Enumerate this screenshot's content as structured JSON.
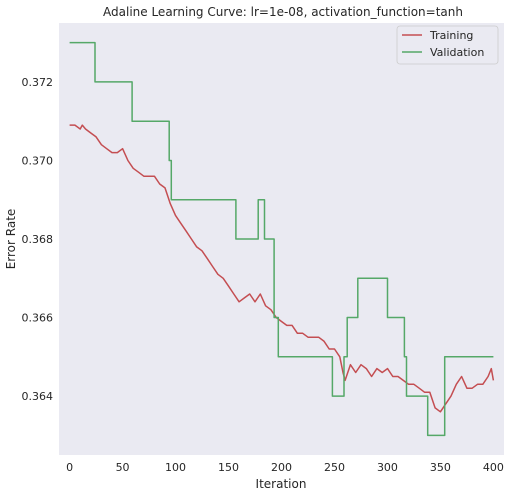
{
  "chart_data": {
    "type": "line",
    "title": "Adaline Learning Curve: lr=1e-08, activation_function=tanh",
    "xlabel": "Iteration",
    "ylabel": "Error Rate",
    "xlim": [
      -10,
      410
    ],
    "ylim": [
      0.3625,
      0.3735
    ],
    "grid": false,
    "legend_position": "top-right",
    "background": "#eaeaf2",
    "x_ticks": [
      0,
      50,
      100,
      150,
      200,
      250,
      300,
      350,
      400
    ],
    "y_ticks": [
      0.364,
      0.366,
      0.368,
      0.37,
      0.372
    ],
    "y_tick_labels": [
      "0.364",
      "0.366",
      "0.368",
      "0.370",
      "0.372"
    ],
    "series": [
      {
        "name": "Training",
        "color": "#c44e52",
        "points": [
          [
            0,
            0.3709
          ],
          [
            5,
            0.3709
          ],
          [
            10,
            0.3708
          ],
          [
            12,
            0.3709
          ],
          [
            15,
            0.3708
          ],
          [
            20,
            0.3707
          ],
          [
            25,
            0.3706
          ],
          [
            30,
            0.3704
          ],
          [
            35,
            0.3703
          ],
          [
            40,
            0.3702
          ],
          [
            45,
            0.3702
          ],
          [
            50,
            0.3703
          ],
          [
            55,
            0.37
          ],
          [
            60,
            0.3698
          ],
          [
            65,
            0.3697
          ],
          [
            70,
            0.3696
          ],
          [
            75,
            0.3696
          ],
          [
            80,
            0.3696
          ],
          [
            85,
            0.3694
          ],
          [
            90,
            0.3693
          ],
          [
            95,
            0.3689
          ],
          [
            100,
            0.3686
          ],
          [
            105,
            0.3684
          ],
          [
            110,
            0.3682
          ],
          [
            115,
            0.368
          ],
          [
            120,
            0.3678
          ],
          [
            125,
            0.3677
          ],
          [
            130,
            0.3675
          ],
          [
            135,
            0.3673
          ],
          [
            140,
            0.3671
          ],
          [
            145,
            0.367
          ],
          [
            150,
            0.3668
          ],
          [
            155,
            0.3666
          ],
          [
            160,
            0.3664
          ],
          [
            165,
            0.3665
          ],
          [
            170,
            0.3666
          ],
          [
            175,
            0.3664
          ],
          [
            180,
            0.3666
          ],
          [
            185,
            0.3663
          ],
          [
            190,
            0.3662
          ],
          [
            195,
            0.366
          ],
          [
            200,
            0.3659
          ],
          [
            205,
            0.3658
          ],
          [
            210,
            0.3658
          ],
          [
            215,
            0.3656
          ],
          [
            220,
            0.3656
          ],
          [
            225,
            0.3655
          ],
          [
            230,
            0.3655
          ],
          [
            235,
            0.3655
          ],
          [
            240,
            0.3654
          ],
          [
            245,
            0.3652
          ],
          [
            250,
            0.3652
          ],
          [
            255,
            0.365
          ],
          [
            258,
            0.3646
          ],
          [
            260,
            0.3644
          ],
          [
            265,
            0.3648
          ],
          [
            270,
            0.3646
          ],
          [
            275,
            0.3648
          ],
          [
            280,
            0.3647
          ],
          [
            285,
            0.3645
          ],
          [
            290,
            0.3647
          ],
          [
            295,
            0.3646
          ],
          [
            300,
            0.3647
          ],
          [
            305,
            0.3645
          ],
          [
            310,
            0.3645
          ],
          [
            315,
            0.3644
          ],
          [
            320,
            0.3643
          ],
          [
            325,
            0.3643
          ],
          [
            330,
            0.3642
          ],
          [
            335,
            0.3641
          ],
          [
            340,
            0.3641
          ],
          [
            345,
            0.3637
          ],
          [
            350,
            0.3636
          ],
          [
            355,
            0.3638
          ],
          [
            360,
            0.364
          ],
          [
            365,
            0.3643
          ],
          [
            370,
            0.3645
          ],
          [
            375,
            0.3642
          ],
          [
            380,
            0.3642
          ],
          [
            385,
            0.3643
          ],
          [
            390,
            0.3643
          ],
          [
            395,
            0.3645
          ],
          [
            398,
            0.3647
          ],
          [
            400,
            0.3644
          ]
        ]
      },
      {
        "name": "Validation",
        "color": "#55a868",
        "steps": [
          [
            0,
            0.373
          ],
          [
            24,
            0.373
          ],
          [
            24,
            0.372
          ],
          [
            59,
            0.372
          ],
          [
            59,
            0.371
          ],
          [
            94,
            0.371
          ],
          [
            94,
            0.37
          ],
          [
            96,
            0.37
          ],
          [
            96,
            0.369
          ],
          [
            157,
            0.369
          ],
          [
            157,
            0.368
          ],
          [
            178,
            0.368
          ],
          [
            178,
            0.369
          ],
          [
            184,
            0.369
          ],
          [
            184,
            0.368
          ],
          [
            193,
            0.368
          ],
          [
            193,
            0.366
          ],
          [
            197,
            0.366
          ],
          [
            197,
            0.365
          ],
          [
            248,
            0.365
          ],
          [
            248,
            0.364
          ],
          [
            259,
            0.364
          ],
          [
            259,
            0.365
          ],
          [
            262,
            0.365
          ],
          [
            262,
            0.366
          ],
          [
            272,
            0.366
          ],
          [
            272,
            0.367
          ],
          [
            300,
            0.367
          ],
          [
            300,
            0.366
          ],
          [
            316,
            0.366
          ],
          [
            316,
            0.365
          ],
          [
            318,
            0.365
          ],
          [
            318,
            0.364
          ],
          [
            338,
            0.364
          ],
          [
            338,
            0.363
          ],
          [
            354,
            0.363
          ],
          [
            354,
            0.365
          ],
          [
            400,
            0.365
          ]
        ]
      }
    ]
  }
}
